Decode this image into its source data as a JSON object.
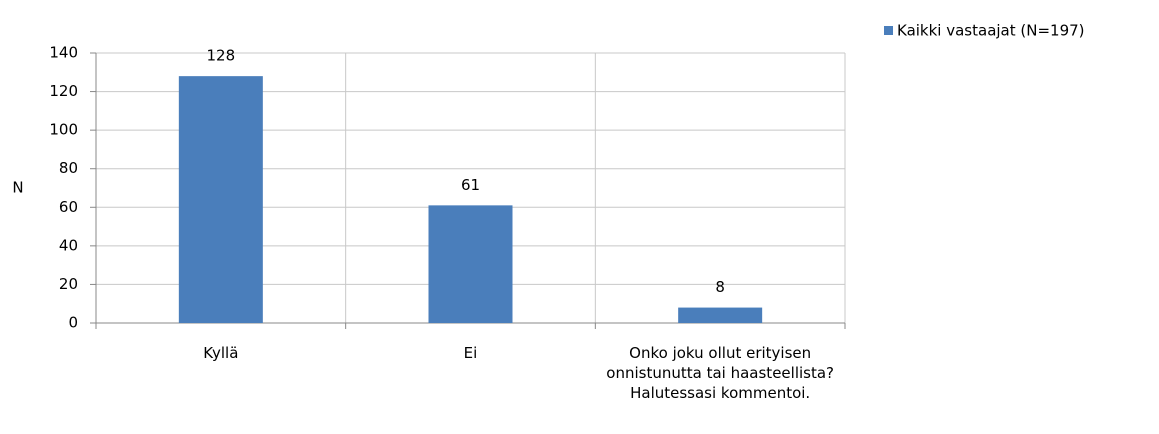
{
  "chart_data": {
    "type": "bar",
    "y_label": "N",
    "categories": [
      "Kyllä",
      "Ei",
      "Onko joku ollut erityisen onnistunutta tai haasteellista? Halutessasi kommentoi."
    ],
    "series": [
      {
        "name": "Kaikki vastaajat (N=197)",
        "color": "#4a7ebb",
        "values": [
          128,
          61,
          8
        ]
      }
    ],
    "ylim": [
      0,
      140
    ],
    "yticks": [
      0,
      20,
      40,
      60,
      80,
      100,
      120,
      140
    ],
    "grid": true,
    "legend": "top-right"
  }
}
